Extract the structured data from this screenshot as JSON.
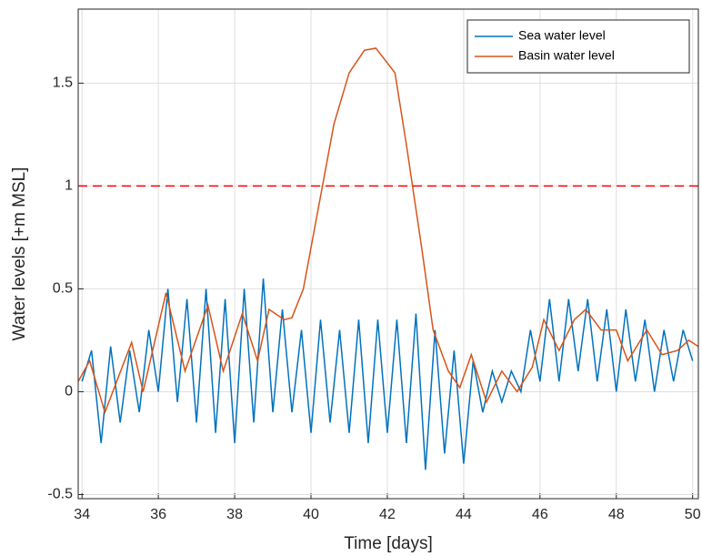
{
  "chart_data": {
    "type": "line",
    "xlabel": "Time [days]",
    "ylabel": "Water levels [+m MSL]",
    "xlim": [
      33.9,
      50.15
    ],
    "ylim": [
      -0.52,
      1.86
    ],
    "xticks": [
      34,
      36,
      38,
      40,
      42,
      44,
      46,
      48,
      50
    ],
    "yticks": [
      -0.5,
      0,
      0.5,
      1,
      1.5
    ],
    "grid": true,
    "legend": "top-right",
    "threshold": {
      "value": 1,
      "color": "#ff0000"
    },
    "series": [
      {
        "name": "Sea water level",
        "color": "#0072bd",
        "x": [
          34,
          34.25,
          34.5,
          34.75,
          35,
          35.25,
          35.5,
          35.75,
          36,
          36.25,
          36.5,
          36.75,
          37,
          37.25,
          37.5,
          37.75,
          38,
          38.25,
          38.5,
          38.75,
          39,
          39.25,
          39.5,
          39.75,
          40,
          40.25,
          40.5,
          40.75,
          41,
          41.25,
          41.5,
          41.75,
          42,
          42.25,
          42.5,
          42.75,
          43,
          43.25,
          43.5,
          43.75,
          44,
          44.25,
          44.5,
          44.75,
          45,
          45.25,
          45.5,
          45.75,
          46,
          46.25,
          46.5,
          46.75,
          47,
          47.25,
          47.5,
          47.75,
          48,
          48.25,
          48.5,
          48.75,
          49,
          49.25,
          49.5,
          49.75,
          50
        ],
        "values": [
          0.05,
          0.2,
          -0.25,
          0.22,
          -0.15,
          0.2,
          -0.1,
          0.3,
          0.0,
          0.5,
          -0.05,
          0.45,
          -0.15,
          0.5,
          -0.2,
          0.45,
          -0.25,
          0.5,
          -0.15,
          0.55,
          -0.1,
          0.4,
          -0.1,
          0.3,
          -0.2,
          0.35,
          -0.15,
          0.3,
          -0.2,
          0.35,
          -0.25,
          0.35,
          -0.2,
          0.35,
          -0.25,
          0.38,
          -0.38,
          0.3,
          -0.3,
          0.2,
          -0.35,
          0.15,
          -0.1,
          0.1,
          -0.05,
          0.1,
          0.0,
          0.3,
          0.05,
          0.45,
          0.05,
          0.45,
          0.1,
          0.45,
          0.05,
          0.4,
          0.0,
          0.4,
          0.05,
          0.35,
          0.0,
          0.3,
          0.05,
          0.3,
          0.15
        ]
      },
      {
        "name": "Basin water level",
        "color": "#d95319",
        "x": [
          33.9,
          34.2,
          34.6,
          35.3,
          35.6,
          36.2,
          36.7,
          37.3,
          37.7,
          38.2,
          38.6,
          38.9,
          39.3,
          39.5,
          39.8,
          40.2,
          40.6,
          41.0,
          41.4,
          41.7,
          42.2,
          42.5,
          42.9,
          43.2,
          43.6,
          43.9,
          44.2,
          44.6,
          45.0,
          45.4,
          45.8,
          46.1,
          46.5,
          46.9,
          47.2,
          47.6,
          48.0,
          48.3,
          48.8,
          49.2,
          49.6,
          49.9,
          50.15
        ],
        "values": [
          0.05,
          0.15,
          -0.1,
          0.24,
          0.0,
          0.48,
          0.1,
          0.42,
          0.1,
          0.38,
          0.15,
          0.4,
          0.35,
          0.36,
          0.5,
          0.9,
          1.3,
          1.55,
          1.66,
          1.67,
          1.55,
          1.2,
          0.7,
          0.3,
          0.1,
          0.02,
          0.18,
          -0.05,
          0.1,
          0.0,
          0.12,
          0.35,
          0.2,
          0.35,
          0.4,
          0.3,
          0.3,
          0.15,
          0.3,
          0.18,
          0.2,
          0.25,
          0.22
        ]
      }
    ]
  }
}
